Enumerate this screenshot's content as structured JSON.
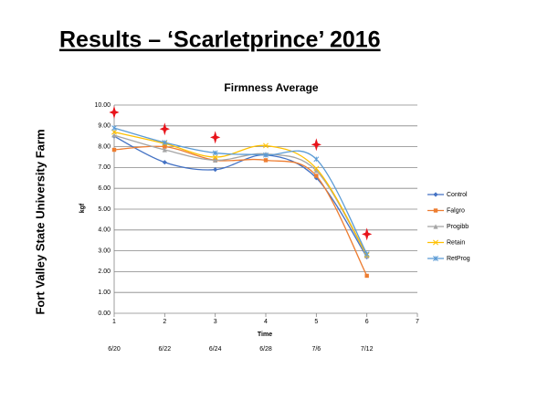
{
  "header": {
    "title": "Results – ‘Scarletprince’ 2016",
    "side_label": "Fort Valley State University Farm"
  },
  "chart_data": {
    "type": "line",
    "title": "Firmness Average",
    "x_label": "Time",
    "y_label": "kgf",
    "x": [
      1,
      2,
      3,
      4,
      5,
      6
    ],
    "date_labels": [
      "6/20",
      "6/22",
      "6/24",
      "6/28",
      "7/6",
      "7/12"
    ],
    "xlim": [
      1,
      7
    ],
    "xticks": [
      1,
      2,
      3,
      4,
      5,
      6,
      7
    ],
    "ylim": [
      0,
      10
    ],
    "yticks": [
      {
        "value": 0,
        "label": "0.00"
      },
      {
        "value": 1,
        "label": "1.00"
      },
      {
        "value": 2,
        "label": "2.00"
      },
      {
        "value": 3,
        "label": "3.00"
      },
      {
        "value": 4,
        "label": "4.00"
      },
      {
        "value": 5,
        "label": "5.00"
      },
      {
        "value": 6,
        "label": "6.00"
      },
      {
        "value": 7,
        "label": "7.00"
      },
      {
        "value": 8,
        "label": "8.00"
      },
      {
        "value": 9,
        "label": "9.00"
      },
      {
        "value": 10,
        "label": "10.00"
      }
    ],
    "grid": true,
    "legend": "right",
    "series": [
      {
        "name": "Control",
        "color": "#4472c4",
        "marker": "diamond",
        "values": [
          8.5,
          7.25,
          6.9,
          7.6,
          6.5,
          2.7
        ]
      },
      {
        "name": "Falgro",
        "color": "#ed7d31",
        "marker": "square",
        "values": [
          7.85,
          8.0,
          7.35,
          7.35,
          6.6,
          1.8
        ]
      },
      {
        "name": "Progibb",
        "color": "#a5a5a5",
        "marker": "triangle",
        "values": [
          8.55,
          7.85,
          7.35,
          7.65,
          6.85,
          2.75
        ]
      },
      {
        "name": "Retain",
        "color": "#ffc000",
        "marker": "x",
        "values": [
          8.7,
          8.15,
          7.5,
          8.05,
          6.95,
          2.8
        ]
      },
      {
        "name": "RetProg",
        "color": "#5b9bd5",
        "marker": "asterisk",
        "values": [
          8.9,
          8.2,
          7.7,
          7.6,
          7.4,
          2.85
        ]
      }
    ],
    "highlights": {
      "color": "#e8141b",
      "x": [
        1,
        2,
        3,
        5,
        6
      ],
      "values": [
        9.65,
        8.85,
        8.45,
        8.1,
        3.8
      ]
    }
  }
}
